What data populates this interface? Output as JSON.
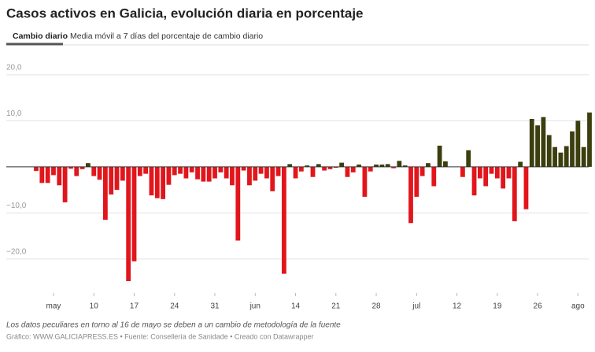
{
  "chart_data": {
    "type": "bar",
    "title": "Casos activos en Galicia, evolución diaria en porcentaje",
    "tabs": [
      "Cambio diario",
      "Media móvil a 7 días del porcentaje de cambio diario"
    ],
    "categories": [
      null,
      null,
      null,
      "may",
      null,
      null,
      null,
      null,
      null,
      null,
      "10",
      null,
      null,
      null,
      null,
      null,
      null,
      "17",
      null,
      null,
      null,
      null,
      null,
      null,
      "24",
      null,
      null,
      null,
      null,
      null,
      null,
      "31",
      null,
      null,
      null,
      null,
      null,
      null,
      "jun",
      null,
      null,
      null,
      null,
      null,
      null,
      "14",
      null,
      null,
      null,
      null,
      null,
      null,
      "21",
      null,
      null,
      null,
      null,
      null,
      null,
      "28",
      null,
      null,
      null,
      null,
      null,
      null,
      "jul",
      null,
      null,
      null,
      null,
      null,
      null,
      "12",
      null,
      null,
      null,
      null,
      null,
      null,
      "19",
      null,
      null,
      null,
      null,
      null,
      null,
      "26",
      null,
      null,
      null,
      null,
      null,
      null,
      "ago",
      null,
      null
    ],
    "values": [
      -0.9,
      -3.5,
      -3.5,
      -1.8,
      -4,
      -7.7,
      -0.4,
      -2,
      -0.5,
      0.8,
      -2,
      -2.8,
      -11.5,
      -6,
      -5,
      -3,
      -24.8,
      -20.5,
      -2,
      -1.5,
      -6.2,
      -6.8,
      -7,
      -3.9,
      -1.8,
      -1.5,
      -2.5,
      -1.2,
      -2.7,
      -3.2,
      -3.2,
      -2.5,
      -1.2,
      -2.5,
      -4,
      -16,
      -0.8,
      -4,
      -3,
      -1.5,
      -2.5,
      -5.3,
      -2,
      -23.2,
      0.6,
      -2.5,
      -1,
      0.3,
      -2.2,
      0.6,
      -0.8,
      -0.5,
      -0.2,
      0.9,
      -2.2,
      -1.2,
      0.5,
      -6.5,
      -1,
      0.5,
      0.5,
      0.6,
      -0.3,
      1.3,
      0.3,
      -12.2,
      -6.5,
      -2,
      0.8,
      -4.2,
      4.6,
      1.2,
      0,
      0,
      -2.2,
      3.6,
      -6.2,
      -2.5,
      -4.2,
      -1.5,
      -2.5,
      -4.7,
      -2.5,
      -11.8,
      1.1,
      -9.2,
      10.4,
      9,
      10.8,
      6.9,
      4.3,
      3.1,
      4.5,
      7.7,
      10,
      4.3,
      11.8
    ],
    "positive_color": "#3b3f0e",
    "negative_color": "#e1161c",
    "ylim": [
      -26,
      21
    ],
    "yticks": [
      {
        "value": -20,
        "label": "−20,0"
      },
      {
        "value": -10,
        "label": "−10,0"
      },
      {
        "value": 10,
        "label": "10,0"
      },
      {
        "value": 20,
        "label": "20,0"
      }
    ],
    "grid": true,
    "note": "Los datos peculiares en torno al 16 de mayo se deben a un cambio de metodología de la fuente",
    "source": "Gráfico: WWW.GALICIAPRESS.ES • Fuente: Consellería de Sanidade • Creado con Datawrapper"
  }
}
